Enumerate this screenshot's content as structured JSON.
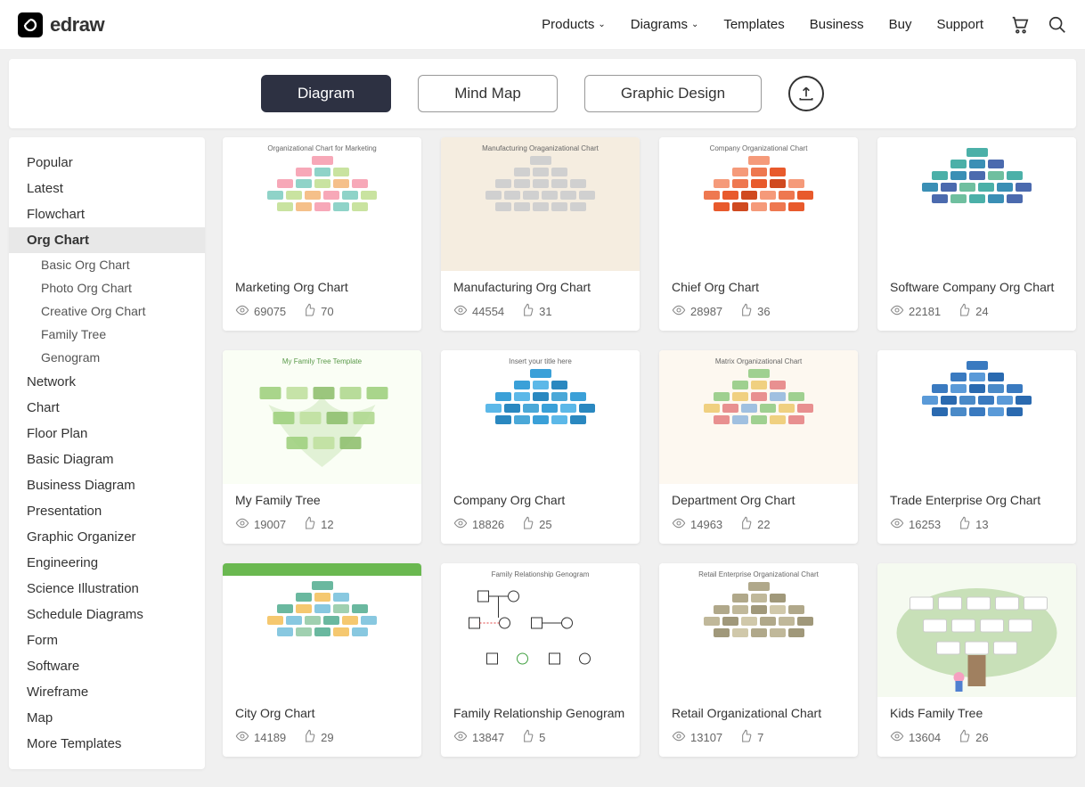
{
  "brand": "edraw",
  "nav": [
    "Products",
    "Diagrams",
    "Templates",
    "Business",
    "Buy",
    "Support"
  ],
  "nav_has_dropdown": [
    true,
    true,
    false,
    false,
    false,
    false
  ],
  "tabs": [
    "Diagram",
    "Mind Map",
    "Graphic Design"
  ],
  "active_tab": 0,
  "sidebar": {
    "items": [
      "Popular",
      "Latest",
      "Flowchart",
      "Org Chart",
      "Network",
      "Chart",
      "Floor Plan",
      "Basic Diagram",
      "Business Diagram",
      "Presentation",
      "Graphic Organizer",
      "Engineering",
      "Science Illustration",
      "Schedule Diagrams",
      "Form",
      "Software",
      "Wireframe",
      "Map",
      "More Templates"
    ],
    "active_index": 3,
    "sub_items": [
      "Basic Org Chart",
      "Photo Org Chart",
      "Creative Org Chart",
      "Family Tree",
      "Genogram"
    ]
  },
  "cards": [
    {
      "title": "Marketing Org Chart",
      "views": "69075",
      "likes": "70",
      "thumb_title": "Organizational Chart for Marketing",
      "palette": [
        "#f7a8b8",
        "#8fd3c8",
        "#c9e3a0",
        "#f5c08a"
      ],
      "bg": "#ffffff"
    },
    {
      "title": "Manufacturing Org Chart",
      "views": "44554",
      "likes": "31",
      "thumb_title": "Manufacturing Oraganizational Chart",
      "palette": [
        "#d0d0d0",
        "#d0d0d0",
        "#d0d0d0",
        "#d0d0d0"
      ],
      "bg": "#f5ede0"
    },
    {
      "title": "Chief Org Chart",
      "views": "28987",
      "likes": "36",
      "thumb_title": "Company Organizational Chart",
      "palette": [
        "#f59a7a",
        "#ee7850",
        "#e85a2c",
        "#d04a20"
      ],
      "bg": "#ffffff"
    },
    {
      "title": "Software Company Org Chart",
      "views": "22181",
      "likes": "24",
      "thumb_title": "",
      "palette": [
        "#4bb0a8",
        "#3a8fb5",
        "#4b6aae",
        "#6fbf9f"
      ],
      "bg": "#ffffff"
    },
    {
      "title": "My Family Tree",
      "views": "19007",
      "likes": "12",
      "thumb_title": "My Family Tree Template",
      "palette": [
        "#a0d080",
        "#c0e0a0",
        "#90c070",
        "#b0d890"
      ],
      "bg": "#fafef5"
    },
    {
      "title": "Company Org Chart",
      "views": "18826",
      "likes": "25",
      "thumb_title": "Insert your title here",
      "palette": [
        "#3aa0d8",
        "#5cb8e8",
        "#2a88c0",
        "#4aa8d8"
      ],
      "bg": "#ffffff"
    },
    {
      "title": "Department Org Chart",
      "views": "14963",
      "likes": "22",
      "thumb_title": "Matrix Organizational Chart",
      "palette": [
        "#9fd090",
        "#f0d080",
        "#e89090",
        "#a0c0e0"
      ],
      "bg": "#fdf8f0"
    },
    {
      "title": "Trade Enterprise Org Chart",
      "views": "16253",
      "likes": "13",
      "thumb_title": "",
      "palette": [
        "#3a7ac0",
        "#5a9ad8",
        "#2a6ab0",
        "#4a8ac8"
      ],
      "bg": "#ffffff"
    },
    {
      "title": "City Org Chart",
      "views": "14189",
      "likes": "29",
      "thumb_title": "",
      "palette": [
        "#6ab89f",
        "#f5c870",
        "#88c8e0",
        "#a0d0b0"
      ],
      "bg": "#ffffff",
      "header_color": "#6ab850"
    },
    {
      "title": "Family Relationship Genogram",
      "views": "13847",
      "likes": "5",
      "thumb_title": "Family Relationship Genogram",
      "palette": [
        "#333333",
        "#333333",
        "#e04040",
        "#40a040"
      ],
      "bg": "#ffffff"
    },
    {
      "title": "Retail Organizational Chart",
      "views": "13107",
      "likes": "7",
      "thumb_title": "Retail Enterprise Organizational Chart",
      "palette": [
        "#b0a88a",
        "#c0b89a",
        "#a0987a",
        "#d0c8aa"
      ],
      "bg": "#ffffff"
    },
    {
      "title": "Kids Family Tree",
      "views": "13604",
      "likes": "26",
      "thumb_title": "",
      "palette": [
        "#d8e8d0",
        "#c8e0c0",
        "#e0f0d8",
        "#d0e8c8"
      ],
      "bg": "#f5faf0"
    }
  ],
  "colors": {
    "active_tab_bg": "#2d3142",
    "page_bg": "#f0f0f0"
  }
}
